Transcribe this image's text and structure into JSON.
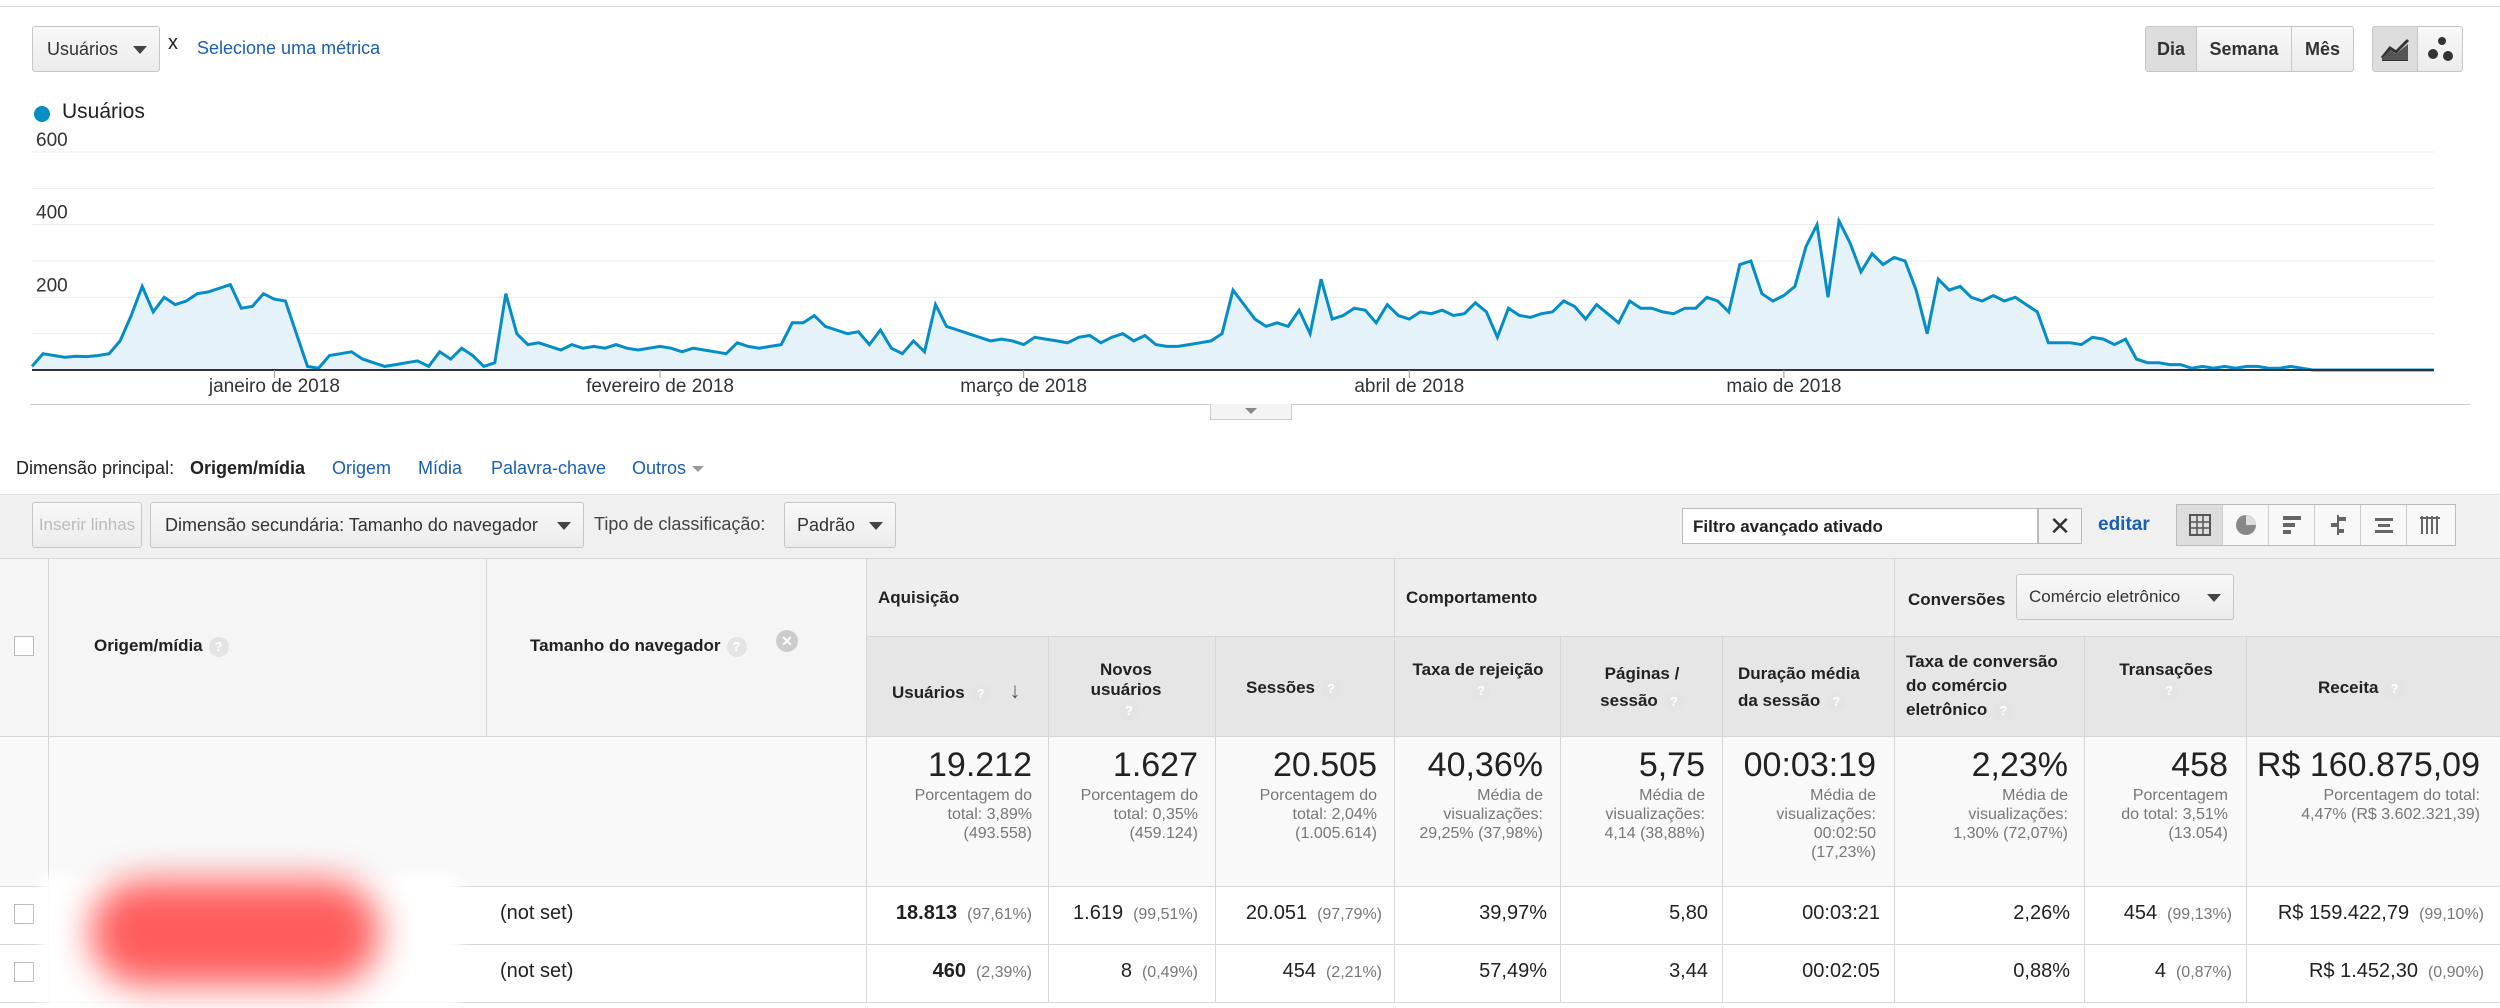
{
  "colors": {
    "accent": "#058dc7",
    "link": "#1a5fb4",
    "fill": "#e6f2fa"
  },
  "controls": {
    "metric_select": "Usuários",
    "remove_x": "x",
    "select_metric_link": "Selecione uma métrica",
    "period_day": "Dia",
    "period_week": "Semana",
    "period_month": "Mês",
    "line_chart_icon": "line-chart-icon",
    "motion_chart_icon": "motion-chart-icon"
  },
  "chart_data": {
    "type": "area",
    "legend": "Usuários",
    "legend_position": "top-left",
    "grid": true,
    "ylim": [
      0,
      600
    ],
    "y_ticks": [
      "600",
      "400",
      "200"
    ],
    "x_labels": [
      "janeiro de 2018",
      "fevereiro de 2018",
      "março de 2018",
      "abril de 2018",
      "maio de 2018"
    ],
    "x_label_days": [
      22,
      57,
      90,
      125,
      159
    ],
    "values": [
      10,
      45,
      40,
      35,
      38,
      37,
      40,
      45,
      80,
      150,
      230,
      160,
      200,
      180,
      190,
      210,
      215,
      225,
      235,
      170,
      175,
      210,
      195,
      190,
      100,
      10,
      5,
      40,
      45,
      50,
      30,
      20,
      10,
      15,
      20,
      25,
      10,
      50,
      30,
      60,
      40,
      10,
      20,
      210,
      100,
      70,
      75,
      65,
      55,
      70,
      60,
      65,
      60,
      70,
      60,
      55,
      60,
      65,
      60,
      50,
      60,
      55,
      50,
      45,
      75,
      65,
      60,
      65,
      70,
      130,
      130,
      150,
      120,
      110,
      100,
      105,
      70,
      110,
      60,
      45,
      80,
      50,
      180,
      120,
      110,
      100,
      90,
      80,
      85,
      80,
      70,
      90,
      85,
      80,
      75,
      90,
      95,
      75,
      90,
      100,
      80,
      95,
      70,
      65,
      65,
      70,
      75,
      80,
      100,
      220,
      180,
      140,
      120,
      130,
      120,
      165,
      100,
      250,
      140,
      150,
      170,
      165,
      130,
      180,
      150,
      140,
      160,
      155,
      165,
      150,
      155,
      185,
      160,
      90,
      170,
      150,
      145,
      155,
      160,
      190,
      175,
      140,
      180,
      155,
      130,
      190,
      170,
      170,
      160,
      155,
      170,
      170,
      200,
      190,
      160,
      290,
      300,
      210,
      190,
      205,
      230,
      340,
      400,
      200,
      410,
      350,
      270,
      320,
      290,
      310,
      300,
      220,
      100,
      250,
      220,
      230,
      200,
      190,
      205,
      190,
      200,
      180,
      160,
      75,
      75,
      75,
      70,
      90,
      85,
      70,
      85,
      30,
      20,
      20,
      15,
      15,
      5,
      10,
      5,
      10,
      5,
      10,
      10,
      5,
      5,
      10,
      5,
      0,
      0,
      0,
      0,
      0,
      0,
      0,
      0,
      0,
      0,
      0,
      0
    ]
  },
  "dimension_bar": {
    "label": "Dimensão principal:",
    "active": "Origem/mídia",
    "links": [
      "Origem",
      "Mídia",
      "Palavra-chave"
    ],
    "others": "Outros"
  },
  "toolbar": {
    "insert_rows": "Inserir linhas",
    "secondary_dim": "Dimensão secundária: Tamanho do navegador",
    "sort_label": "Tipo de classificação:",
    "sort_value": "Padrão",
    "filter_text": "Filtro avançado ativado",
    "edit": "editar"
  },
  "table": {
    "col_source": "Origem/mídia",
    "col_browser": "Tamanho do navegador",
    "group_acq": "Aquisição",
    "group_beh": "Comportamento",
    "group_conv": "Conversões",
    "conv_select": "Comércio eletrônico",
    "headers": {
      "users": "Usuários",
      "new_users": "Novos usuários",
      "sessions": "Sessões",
      "bounce": "Taxa de rejeição",
      "pages1": "Páginas /",
      "pages2": "sessão",
      "duration1": "Duração média",
      "duration2": "da sessão",
      "conv1": "Taxa de conversão",
      "conv2": "do comércio",
      "conv3": "eletrônico",
      "transactions": "Transações",
      "revenue": "Receita"
    },
    "totals": {
      "users": "19.212",
      "users_sub": [
        "Porcentagem do",
        "total: 3,89%",
        "(493.558)"
      ],
      "new_users": "1.627",
      "new_users_sub": [
        "Porcentagem do",
        "total: 0,35%",
        "(459.124)"
      ],
      "sessions": "20.505",
      "sessions_sub": [
        "Porcentagem do",
        "total: 2,04%",
        "(1.005.614)"
      ],
      "bounce": "40,36%",
      "bounce_sub": [
        "Média de",
        "visualizações:",
        "29,25% (37,98%)"
      ],
      "pages": "5,75",
      "pages_sub": [
        "Média de",
        "visualizações:",
        "4,14 (38,88%)"
      ],
      "duration": "00:03:19",
      "duration_sub": [
        "Média de",
        "visualizações:",
        "00:02:50",
        "(17,23%)"
      ],
      "conv": "2,23%",
      "conv_sub": [
        "Média de",
        "visualizações:",
        "1,30% (72,07%)"
      ],
      "transactions": "458",
      "transactions_sub": [
        "Porcentagem",
        "do total: 3,51%",
        "(13.054)"
      ],
      "revenue": "R$ 160.875,09",
      "revenue_sub": [
        "Porcentagem do total:",
        "4,47% (R$ 3.602.321,39)"
      ]
    },
    "rows": [
      {
        "browser": "(not set)",
        "users": "18.813",
        "users_pct": "(97,61%)",
        "new_users": "1.619",
        "new_users_pct": "(99,51%)",
        "sessions": "20.051",
        "sessions_pct": "(97,79%)",
        "bounce": "39,97%",
        "pages": "5,80",
        "duration": "00:03:21",
        "conv": "2,26%",
        "transactions": "454",
        "transactions_pct": "(99,13%)",
        "revenue": "R$ 159.422,79",
        "revenue_pct": "(99,10%)"
      },
      {
        "browser": "(not set)",
        "users": "460",
        "users_pct": "(2,39%)",
        "new_users": "8",
        "new_users_pct": "(0,49%)",
        "sessions": "454",
        "sessions_pct": "(2,21%)",
        "bounce": "57,49%",
        "pages": "3,44",
        "duration": "00:02:05",
        "conv": "0,88%",
        "transactions": "4",
        "transactions_pct": "(0,87%)",
        "revenue": "R$ 1.452,30",
        "revenue_pct": "(0,90%)"
      }
    ]
  }
}
